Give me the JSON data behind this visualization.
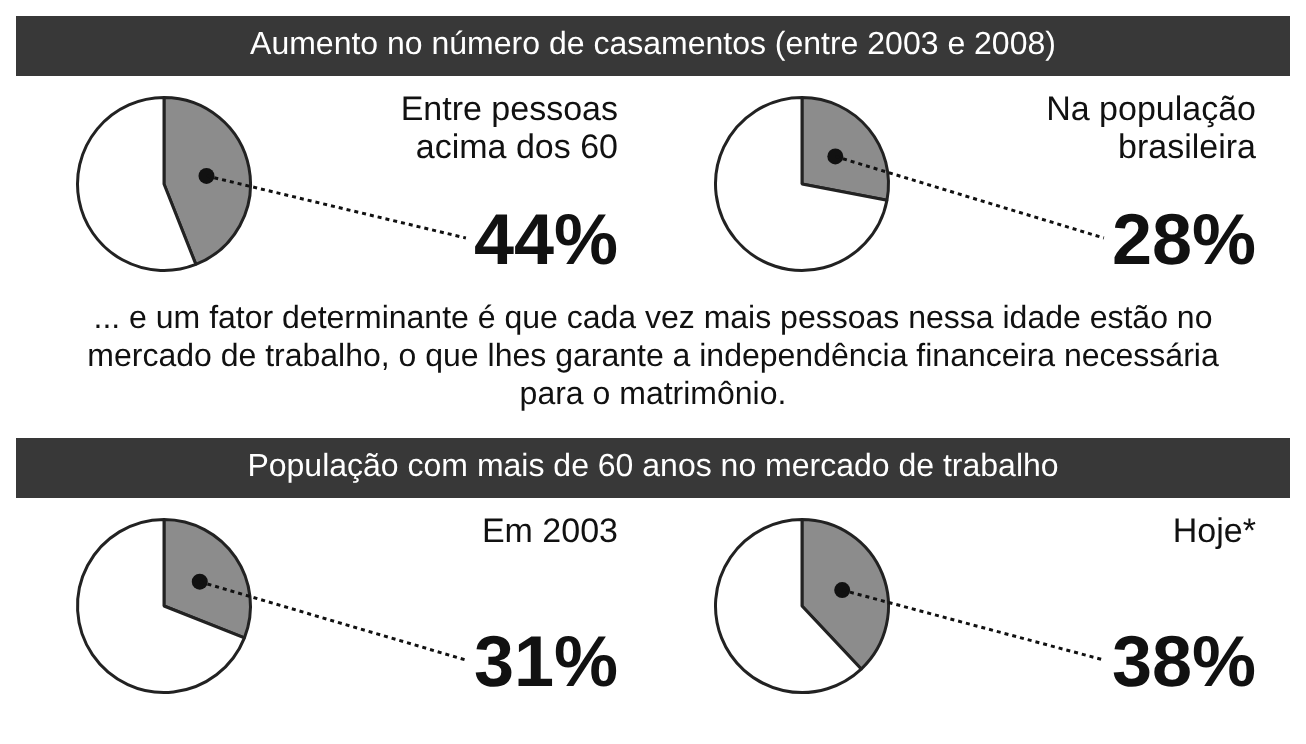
{
  "chart_data": [
    {
      "type": "pie",
      "title": "Aumento no número de casamentos (entre 2003 e 2008)",
      "subtitle": "Entre pessoas acima dos 60",
      "categories": [
        null,
        null
      ],
      "values": [
        44,
        56
      ],
      "colors": [
        "#8c8c8c",
        "#ffffff"
      ],
      "value_labels": [
        "44%",
        null
      ]
    },
    {
      "type": "pie",
      "subtitle": "Na população brasileira",
      "categories": [
        null,
        null
      ],
      "values": [
        28,
        72
      ],
      "colors": [
        "#8c8c8c",
        "#ffffff"
      ],
      "value_labels": [
        "28%",
        null
      ],
      "annotations": [
        "... e um fator determinante é que cada vez mais pessoas nessa idade estão no mercado de trabalho, o que lhes garante a independência financeira necessária para o matrimônio."
      ]
    },
    {
      "type": "pie",
      "title": "População com mais de 60 anos no mercado de trabalho",
      "subtitle": "Em 2003",
      "categories": [
        null,
        null
      ],
      "values": [
        31,
        69
      ],
      "colors": [
        "#8c8c8c",
        "#ffffff"
      ],
      "value_labels": [
        "31%",
        null
      ]
    },
    {
      "type": "pie",
      "subtitle": "Hoje*",
      "categories": [
        null,
        null
      ],
      "values": [
        38,
        62
      ],
      "colors": [
        "#8c8c8c",
        "#ffffff"
      ],
      "value_labels": [
        "38%",
        null
      ]
    }
  ]
}
